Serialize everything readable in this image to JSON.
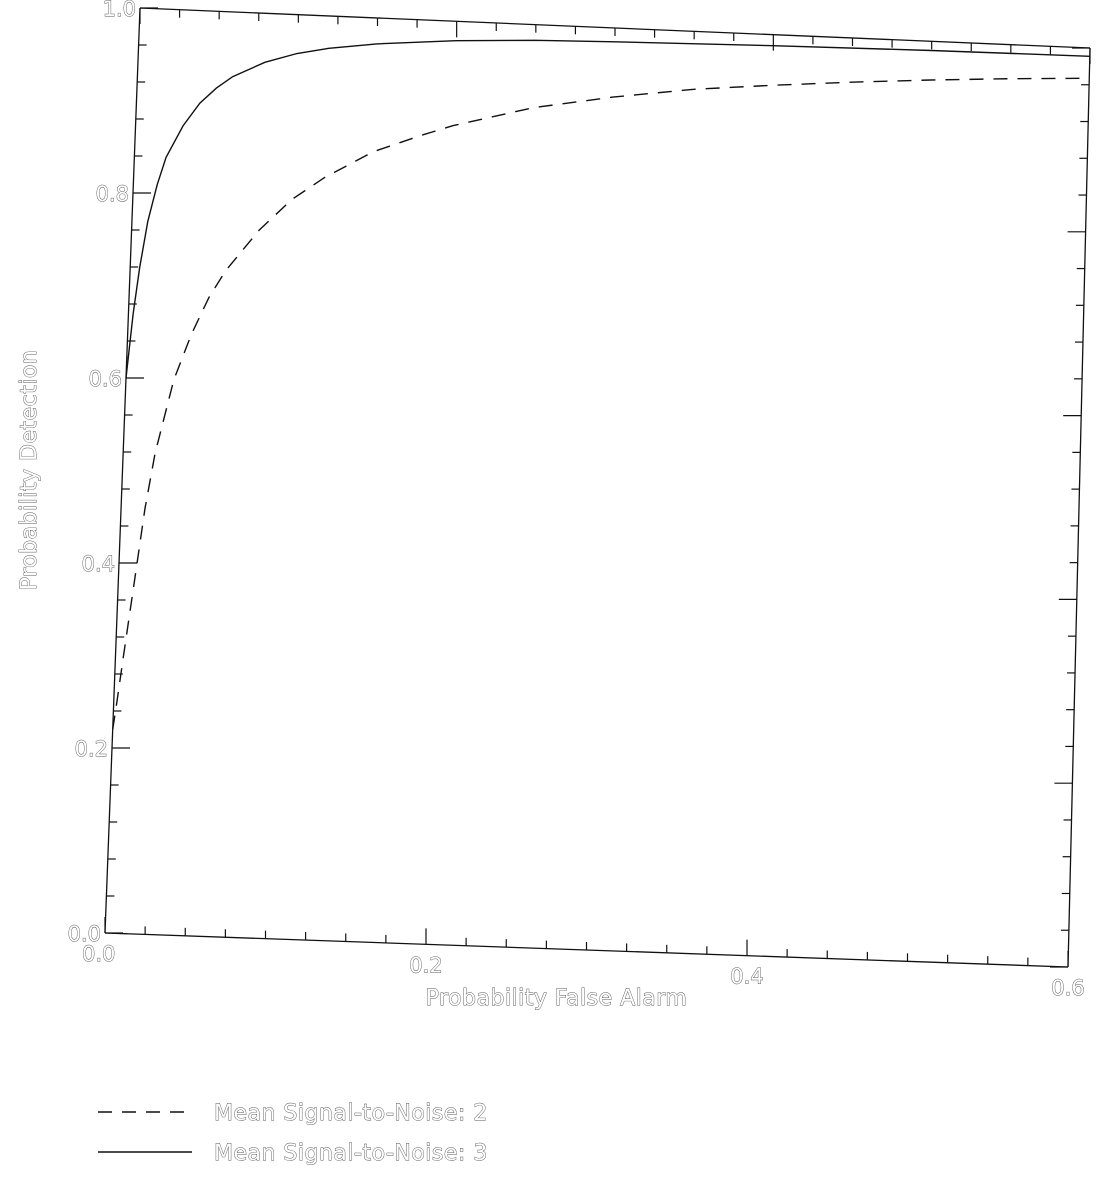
{
  "chart_data": {
    "type": "line",
    "title": "",
    "xlabel": "Probability False Alarm",
    "ylabel": "Probability Detection",
    "xlim": [
      0.0,
      0.6
    ],
    "ylim": [
      0.0,
      1.0
    ],
    "xticks": [
      {
        "value": 0.0,
        "label": "0.0"
      },
      {
        "value": 0.2,
        "label": "0.2"
      },
      {
        "value": 0.4,
        "label": "0.4"
      },
      {
        "value": 0.6,
        "label": "0.6"
      }
    ],
    "yticks": [
      {
        "value": 0.0,
        "label": "0.0"
      },
      {
        "value": 0.2,
        "label": "0.2"
      },
      {
        "value": 0.4,
        "label": "0.4"
      },
      {
        "value": 0.6,
        "label": "0.6"
      },
      {
        "value": 0.8,
        "label": "0.8"
      },
      {
        "value": 1.0,
        "label": "1.0"
      }
    ],
    "grid": false,
    "legend_position": "bottom-left",
    "series": [
      {
        "name": "Mean Signal-to-Noise: 2",
        "line_style": "dashed",
        "x": [
          0.0,
          0.002,
          0.005,
          0.01,
          0.015,
          0.02,
          0.03,
          0.04,
          0.05,
          0.06,
          0.08,
          0.1,
          0.12,
          0.15,
          0.18,
          0.2,
          0.25,
          0.3,
          0.35,
          0.4,
          0.45,
          0.5,
          0.55,
          0.6
        ],
        "y": [
          0.22,
          0.25,
          0.3,
          0.38,
          0.46,
          0.52,
          0.6,
          0.65,
          0.69,
          0.72,
          0.765,
          0.8,
          0.825,
          0.855,
          0.875,
          0.887,
          0.91,
          0.925,
          0.937,
          0.945,
          0.952,
          0.958,
          0.963,
          0.967
        ]
      },
      {
        "name": "Mean Signal-to-Noise: 3",
        "line_style": "solid",
        "x": [
          0.0,
          0.003,
          0.006,
          0.01,
          0.015,
          0.02,
          0.03,
          0.04,
          0.05,
          0.06,
          0.08,
          0.1,
          0.12,
          0.15,
          0.2,
          0.25,
          0.3,
          0.4,
          0.5,
          0.6
        ],
        "y": [
          0.6,
          0.67,
          0.72,
          0.77,
          0.81,
          0.84,
          0.875,
          0.9,
          0.917,
          0.93,
          0.947,
          0.958,
          0.965,
          0.972,
          0.979,
          0.983,
          0.985,
          0.988,
          0.99,
          0.991
        ]
      }
    ]
  }
}
